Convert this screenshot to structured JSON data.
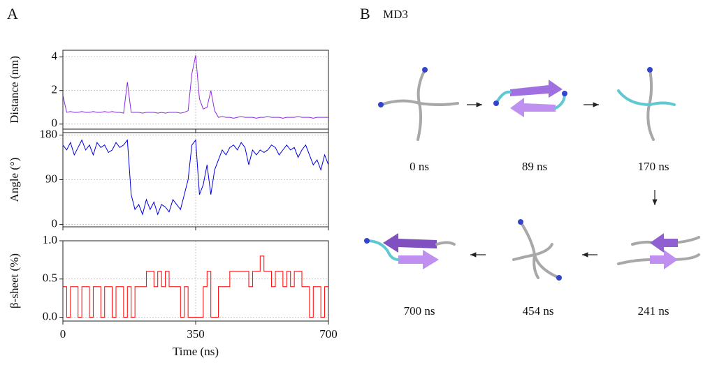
{
  "panel_a_label": "A",
  "panel_b": {
    "label": "B",
    "title": "MD3",
    "snapshots": [
      {
        "label": "0 ns"
      },
      {
        "label": "89 ns"
      },
      {
        "label": "170 ns"
      },
      {
        "label": "241 ns"
      },
      {
        "label": "454 ns"
      },
      {
        "label": "700 ns"
      }
    ]
  },
  "chart_data": [
    {
      "type": "line",
      "ylabel": "Distance (nm)",
      "ylim": [
        -0.3,
        4.4
      ],
      "yticks": [
        0,
        2,
        4
      ],
      "xlim": [
        0,
        700
      ],
      "grid": true,
      "x": [
        0,
        10,
        20,
        30,
        40,
        50,
        60,
        70,
        80,
        90,
        100,
        110,
        120,
        130,
        140,
        150,
        160,
        170,
        180,
        190,
        200,
        210,
        220,
        230,
        240,
        250,
        260,
        270,
        280,
        290,
        300,
        310,
        320,
        330,
        340,
        350,
        360,
        370,
        380,
        390,
        400,
        410,
        420,
        430,
        440,
        450,
        460,
        470,
        480,
        490,
        500,
        510,
        520,
        530,
        540,
        550,
        560,
        570,
        580,
        590,
        600,
        610,
        620,
        630,
        640,
        650,
        660,
        670,
        680,
        690,
        700
      ],
      "series": [
        {
          "color": "#8a2be2",
          "values": [
            1.7,
            0.7,
            0.75,
            0.7,
            0.7,
            0.75,
            0.7,
            0.7,
            0.75,
            0.7,
            0.7,
            0.75,
            0.7,
            0.75,
            0.7,
            0.7,
            0.65,
            2.5,
            0.7,
            0.7,
            0.7,
            0.65,
            0.7,
            0.7,
            0.7,
            0.65,
            0.7,
            0.65,
            0.7,
            0.7,
            0.7,
            0.65,
            0.7,
            0.8,
            3.0,
            4.1,
            1.5,
            0.9,
            1.0,
            2.0,
            0.8,
            0.4,
            0.45,
            0.4,
            0.4,
            0.35,
            0.4,
            0.45,
            0.4,
            0.4,
            0.4,
            0.35,
            0.4,
            0.4,
            0.45,
            0.4,
            0.4,
            0.4,
            0.35,
            0.4,
            0.4,
            0.4,
            0.45,
            0.4,
            0.4,
            0.4,
            0.35,
            0.4,
            0.4,
            0.4,
            0.4
          ]
        }
      ]
    },
    {
      "type": "line",
      "ylabel": "Angle (°)",
      "ylim": [
        -5,
        185
      ],
      "yticks": [
        0,
        90,
        180
      ],
      "xlim": [
        0,
        700
      ],
      "grid": true,
      "x": [
        0,
        10,
        20,
        30,
        40,
        50,
        60,
        70,
        80,
        90,
        100,
        110,
        120,
        130,
        140,
        150,
        160,
        170,
        180,
        190,
        200,
        210,
        220,
        230,
        240,
        250,
        260,
        270,
        280,
        290,
        300,
        310,
        320,
        330,
        340,
        350,
        360,
        370,
        380,
        390,
        400,
        410,
        420,
        430,
        440,
        450,
        460,
        470,
        480,
        490,
        500,
        510,
        520,
        530,
        540,
        550,
        560,
        570,
        580,
        590,
        600,
        610,
        620,
        630,
        640,
        650,
        660,
        670,
        680,
        690,
        700
      ],
      "series": [
        {
          "color": "#0000e0",
          "values": [
            160,
            150,
            165,
            140,
            155,
            170,
            150,
            160,
            140,
            165,
            155,
            160,
            145,
            150,
            165,
            155,
            160,
            170,
            60,
            30,
            40,
            20,
            50,
            30,
            45,
            20,
            40,
            35,
            25,
            50,
            40,
            30,
            60,
            90,
            160,
            170,
            60,
            80,
            120,
            60,
            110,
            130,
            150,
            140,
            155,
            160,
            150,
            165,
            155,
            120,
            150,
            140,
            150,
            145,
            150,
            160,
            155,
            140,
            150,
            160,
            150,
            155,
            135,
            150,
            160,
            140,
            120,
            130,
            110,
            140,
            120
          ]
        }
      ]
    },
    {
      "type": "line",
      "step": true,
      "ylabel": "β-sheet (%)",
      "xlabel": "Time (ns)",
      "ylim": [
        -0.05,
        1.0
      ],
      "yticks": [
        {
          "value": 0,
          "label": "0.0"
        },
        {
          "value": 0.5,
          "label": "0.5"
        },
        {
          "value": 1,
          "label": "1.0"
        }
      ],
      "xlim": [
        0,
        700
      ],
      "xticks": [
        0,
        350,
        700
      ],
      "grid": true,
      "x": [
        0,
        10,
        20,
        30,
        40,
        50,
        60,
        70,
        80,
        90,
        100,
        110,
        120,
        130,
        140,
        150,
        160,
        170,
        180,
        190,
        200,
        210,
        220,
        230,
        240,
        250,
        260,
        270,
        280,
        290,
        300,
        310,
        320,
        330,
        340,
        350,
        360,
        370,
        380,
        390,
        400,
        410,
        420,
        430,
        440,
        450,
        460,
        470,
        480,
        490,
        500,
        510,
        520,
        530,
        540,
        550,
        560,
        570,
        580,
        590,
        600,
        610,
        620,
        630,
        640,
        650,
        660,
        670,
        680,
        690,
        700
      ],
      "series": [
        {
          "color": "#ff0000",
          "values": [
            0.4,
            0,
            0.4,
            0.4,
            0,
            0.4,
            0.4,
            0,
            0.4,
            0.4,
            0,
            0.4,
            0.4,
            0,
            0.4,
            0.4,
            0,
            0.4,
            0,
            0.4,
            0.4,
            0.4,
            0.6,
            0.6,
            0.4,
            0.6,
            0.4,
            0.6,
            0.4,
            0.4,
            0.4,
            0,
            0.4,
            0,
            0,
            0,
            0,
            0.4,
            0.6,
            0,
            0,
            0.4,
            0.4,
            0.4,
            0.6,
            0.6,
            0.6,
            0.6,
            0.6,
            0.4,
            0.6,
            0.6,
            0.8,
            0.6,
            0.6,
            0.4,
            0.6,
            0.6,
            0.4,
            0.6,
            0.4,
            0.6,
            0.6,
            0.4,
            0.4,
            0,
            0.4,
            0.4,
            0,
            0.4,
            0.4
          ]
        }
      ]
    }
  ]
}
